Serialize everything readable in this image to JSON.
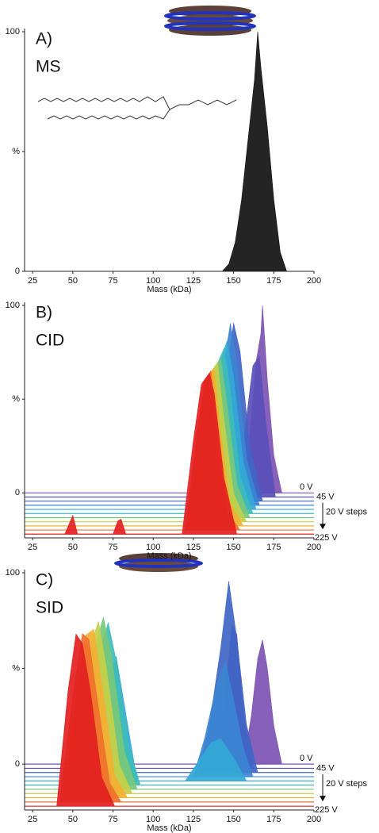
{
  "chart_data": [
    {
      "type": "area",
      "title": "A)",
      "subtitle": "MS",
      "xlabel": "Mass (kDa)",
      "xlim": [
        20,
        200
      ],
      "xticks": [
        25,
        50,
        75,
        100,
        125,
        150,
        175,
        200
      ],
      "ylim": [
        0,
        100
      ],
      "yticks": [
        0,
        {
          "value": 50,
          "label": "%"
        },
        100
      ],
      "series": [
        {
          "color": "#111111",
          "x": [
            143,
            147,
            151,
            155,
            159,
            163,
            165,
            167,
            171,
            175,
            179,
            183
          ],
          "values": [
            0,
            3,
            12,
            30,
            55,
            80,
            100,
            85,
            60,
            30,
            8,
            0
          ]
        }
      ]
    },
    {
      "type": "area",
      "title": "B)",
      "subtitle": "CID",
      "xlabel": "Mass (kDa)",
      "stacked_offset": true,
      "xlim": [
        20,
        200
      ],
      "xticks": [
        25,
        50,
        75,
        100,
        125,
        150,
        175,
        200
      ],
      "ylim": [
        -24,
        100
      ],
      "yticks": [
        0,
        {
          "value": 50,
          "label": "%"
        },
        100
      ],
      "annotations": [
        "20 V steps"
      ],
      "series": [
        {
          "name": "0 V",
          "color": "#7d52b4",
          "x": [
            155,
            160,
            164,
            167,
            168,
            171,
            175,
            180
          ],
          "values": [
            0,
            30,
            70,
            85,
            100,
            60,
            20,
            0
          ]
        },
        {
          "name": "45 V",
          "color": "#5a4fb8",
          "x": [
            152,
            157,
            162,
            166,
            170,
            176
          ],
          "values": [
            0,
            35,
            70,
            75,
            40,
            0
          ]
        },
        {
          "color": "#3f66c6",
          "x": [
            132,
            140,
            146,
            150,
            154,
            160,
            168
          ],
          "values": [
            0,
            30,
            70,
            95,
            80,
            30,
            0
          ]
        },
        {
          "color": "#3b86d2",
          "x": [
            130,
            138,
            144,
            148,
            152,
            158,
            166
          ],
          "values": [
            0,
            30,
            75,
            97,
            75,
            25,
            0
          ]
        },
        {
          "color": "#34a9d6",
          "x": [
            128,
            136,
            142,
            146,
            150,
            156,
            164
          ],
          "values": [
            0,
            35,
            80,
            90,
            70,
            25,
            0
          ]
        },
        {
          "color": "#40bcb8",
          "x": [
            126,
            134,
            140,
            144,
            148,
            154,
            162
          ],
          "values": [
            0,
            40,
            80,
            88,
            65,
            20,
            0
          ]
        },
        {
          "color": "#78c878",
          "x": [
            124,
            132,
            138,
            142,
            146,
            152,
            160
          ],
          "values": [
            0,
            45,
            80,
            85,
            60,
            18,
            0
          ]
        },
        {
          "color": "#c6cf4a",
          "x": [
            122,
            130,
            136,
            140,
            144,
            150,
            158
          ],
          "values": [
            0,
            45,
            80,
            85,
            55,
            15,
            0
          ]
        },
        {
          "color": "#f3b033",
          "x": [
            121,
            128,
            134,
            138,
            142,
            148,
            156
          ],
          "values": [
            0,
            50,
            80,
            84,
            50,
            12,
            0
          ]
        },
        {
          "color": "#f0702c",
          "x": [
            120,
            127,
            132,
            136,
            140,
            146,
            154
          ],
          "values": [
            0,
            50,
            80,
            85,
            45,
            10,
            0
          ]
        },
        {
          "name": "225 V",
          "color": "#e32020",
          "x": [
            45,
            49,
            50,
            53,
            75,
            78,
            80,
            83,
            118,
            125,
            130,
            135,
            138,
            144,
            152
          ],
          "values": [
            0,
            8,
            10,
            0,
            0,
            7,
            8,
            0,
            0,
            50,
            80,
            86,
            75,
            30,
            0
          ]
        }
      ]
    },
    {
      "type": "area",
      "title": "C)",
      "subtitle": "SID",
      "xlabel": "Mass (kDa)",
      "stacked_offset": true,
      "xlim": [
        20,
        200
      ],
      "xticks": [
        25,
        50,
        75,
        100,
        125,
        150,
        175,
        200
      ],
      "ylim": [
        -24,
        100
      ],
      "yticks": [
        0,
        {
          "value": 50,
          "label": "%"
        },
        100
      ],
      "annotations": [
        "20 V steps"
      ],
      "series": [
        {
          "name": "0 V",
          "color": "#7d52b4",
          "x": [
            156,
            161,
            165,
            168,
            171,
            175,
            180
          ],
          "values": [
            0,
            25,
            55,
            65,
            50,
            20,
            0
          ]
        },
        {
          "name": "45 V",
          "color": "#5a4fb8",
          "x": [
            140,
            145,
            149,
            152,
            156,
            162
          ],
          "values": [
            0,
            40,
            75,
            70,
            30,
            0
          ]
        },
        {
          "color": "#3f66c6",
          "x": [
            128,
            135,
            142,
            147,
            152,
            158,
            165
          ],
          "values": [
            0,
            25,
            65,
            100,
            70,
            25,
            0
          ]
        },
        {
          "color": "#3b86d2",
          "x": [
            125,
            132,
            140,
            145,
            150,
            156,
            162
          ],
          "values": [
            0,
            20,
            50,
            60,
            40,
            15,
            0
          ]
        },
        {
          "color": "#34a9d6",
          "x": [
            55,
            65,
            72,
            77,
            82,
            90,
            120,
            128,
            136,
            142,
            150,
            158
          ],
          "values": [
            0,
            30,
            55,
            65,
            40,
            0,
            0,
            10,
            20,
            22,
            12,
            0
          ]
        },
        {
          "color": "#40bcb8",
          "x": [
            50,
            60,
            67,
            72,
            77,
            85,
            92
          ],
          "values": [
            0,
            35,
            70,
            85,
            65,
            20,
            0
          ]
        },
        {
          "color": "#78c878",
          "x": [
            48,
            57,
            64,
            69,
            74,
            82,
            90
          ],
          "values": [
            0,
            40,
            75,
            90,
            70,
            20,
            0
          ]
        },
        {
          "color": "#c6cf4a",
          "x": [
            46,
            55,
            62,
            66,
            71,
            79,
            87
          ],
          "values": [
            0,
            45,
            80,
            90,
            65,
            15,
            0
          ]
        },
        {
          "color": "#f3b033",
          "x": [
            44,
            52,
            58,
            63,
            68,
            76,
            84
          ],
          "values": [
            0,
            50,
            85,
            88,
            60,
            12,
            0
          ]
        },
        {
          "color": "#f0702c",
          "x": [
            42,
            50,
            56,
            60,
            65,
            73,
            80
          ],
          "values": [
            0,
            55,
            88,
            85,
            55,
            10,
            0
          ]
        },
        {
          "name": "225 V",
          "color": "#e32020",
          "x": [
            40,
            47,
            52,
            56,
            61,
            68,
            76
          ],
          "values": [
            0,
            60,
            90,
            85,
            60,
            15,
            0
          ]
        }
      ]
    }
  ]
}
